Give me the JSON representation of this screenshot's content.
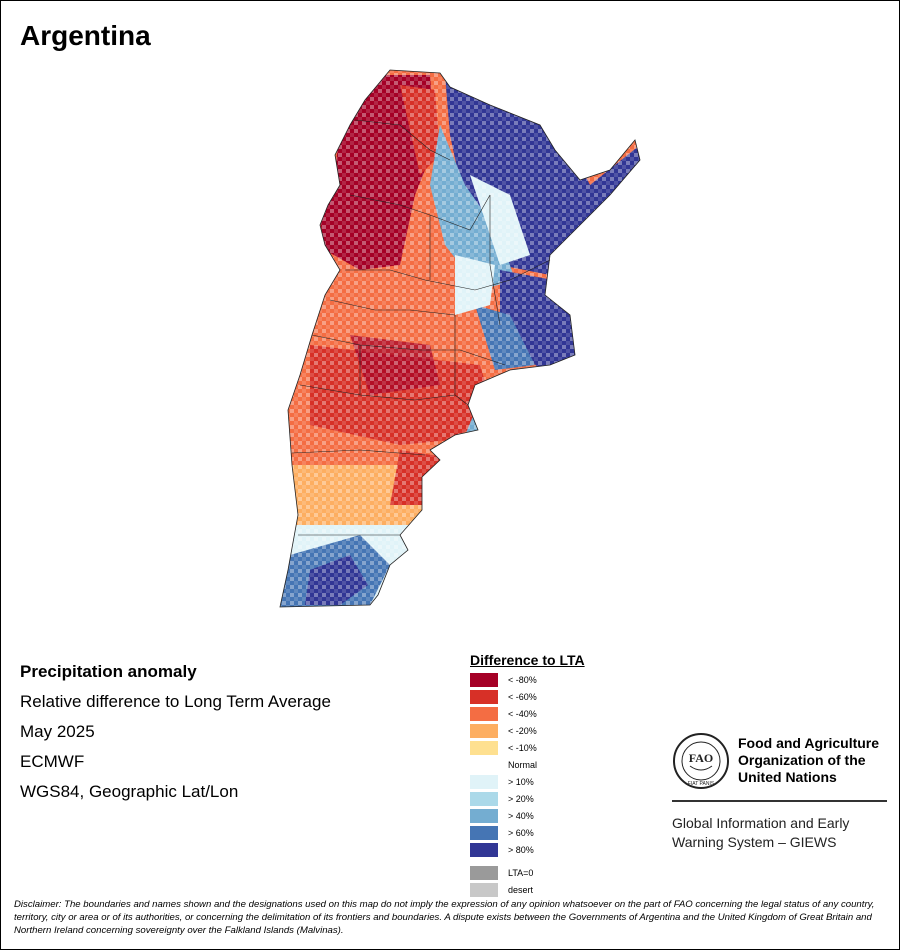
{
  "title": "Argentina",
  "info": {
    "heading": "Precipitation anomaly",
    "subtitle": "Relative difference to Long Term Average",
    "period": "May 2025",
    "source": "ECMWF",
    "projection": "WGS84, Geographic Lat/Lon"
  },
  "legend": {
    "title": "Difference to LTA",
    "items": [
      {
        "label": "< -80%",
        "color": "#a50026"
      },
      {
        "label": "< -60%",
        "color": "#d73027"
      },
      {
        "label": "< -40%",
        "color": "#f46d43"
      },
      {
        "label": "< -20%",
        "color": "#fdae61"
      },
      {
        "label": "< -10%",
        "color": "#fee090"
      },
      {
        "label": "Normal",
        "color": "#ffffff"
      },
      {
        "label": "> 10%",
        "color": "#e0f3f8"
      },
      {
        "label": "> 20%",
        "color": "#abd9e9"
      },
      {
        "label": "> 40%",
        "color": "#74add1"
      },
      {
        "label": "> 60%",
        "color": "#4575b4"
      },
      {
        "label": "> 80%",
        "color": "#313695"
      }
    ],
    "extra": [
      {
        "label": "LTA=0",
        "color": "#9a9a9a"
      },
      {
        "label": "desert",
        "color": "#c8c8c8"
      }
    ]
  },
  "org": {
    "logo_text": "FAO",
    "logo_motto": "FIAT PANIS",
    "name_lines": [
      "Food and Agriculture",
      "Organization of the",
      "United Nations"
    ],
    "system_lines": [
      "Global Information and Early",
      "Warning System – GIEWS"
    ]
  },
  "disclaimer": "Disclaimer: The boundaries and names shown and the designations used on this map do not imply the expression of any opinion whatsoever on the part of FAO concerning the legal status of any country, territory, city or area or of its authorities, or concerning the delimitation of its frontiers and boundaries. A dispute exists between the Governments of Argentina and the United Kingdom of Great Britain and Northern Ireland concerning sovereignty over the Falkland Islands (Malvinas)."
}
